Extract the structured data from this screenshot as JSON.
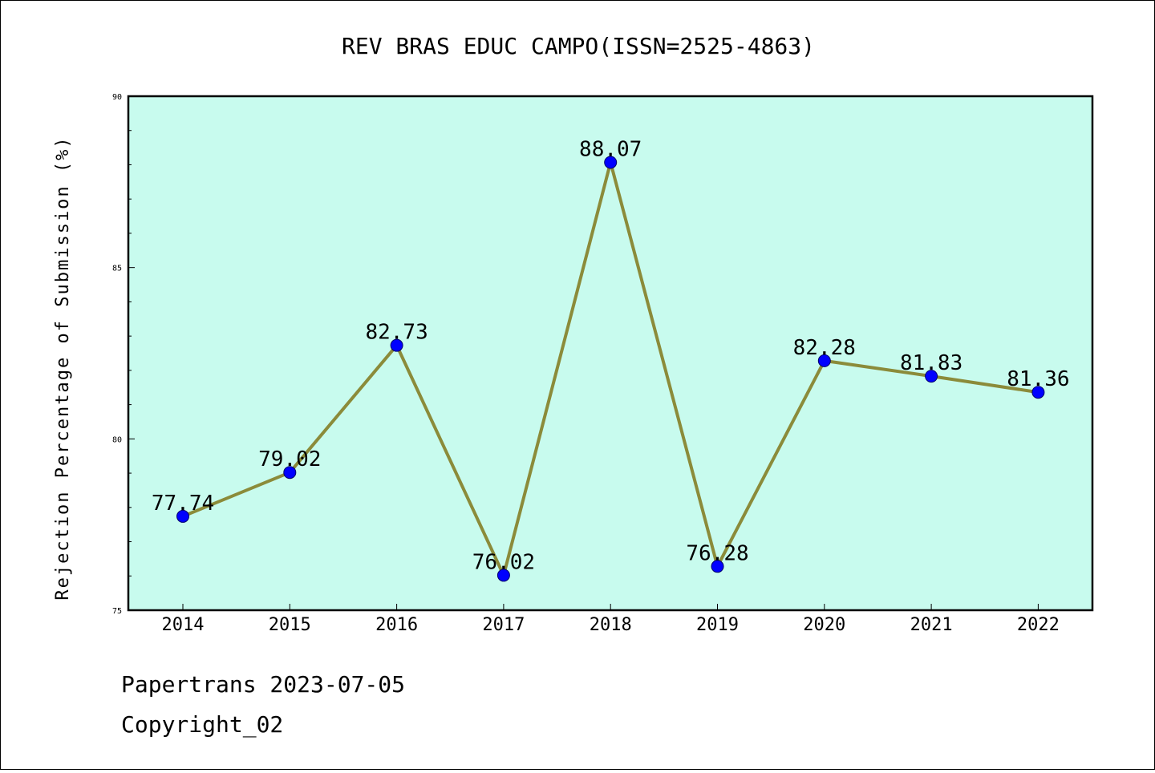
{
  "chart_data": {
    "type": "line",
    "title": "REV BRAS EDUC CAMPO(ISSN=2525-4863)",
    "xlabel": "",
    "ylabel": "Rejection Percentage of Submission (%)",
    "categories": [
      "2014",
      "2015",
      "2016",
      "2017",
      "2018",
      "2019",
      "2020",
      "2021",
      "2022"
    ],
    "series": [
      {
        "values": [
          77.74,
          79.02,
          82.73,
          76.02,
          88.07,
          76.28,
          82.28,
          81.83,
          81.36
        ],
        "labels": [
          "77.74",
          "79.02",
          "82.73",
          "76.02",
          "88.07",
          "76.28",
          "82.28",
          "81.83",
          "81.36"
        ]
      }
    ],
    "ylim": [
      75,
      90
    ],
    "yticks": [
      "75",
      "80",
      "85",
      "90"
    ],
    "grid": false,
    "legend": "none"
  },
  "colors": {
    "plot_background": "#c8fbee",
    "line": "#8b8b3a",
    "marker": "#0000ff"
  },
  "footer": {
    "line1": "Papertrans 2023-07-05",
    "line2": "Copyright_02"
  }
}
